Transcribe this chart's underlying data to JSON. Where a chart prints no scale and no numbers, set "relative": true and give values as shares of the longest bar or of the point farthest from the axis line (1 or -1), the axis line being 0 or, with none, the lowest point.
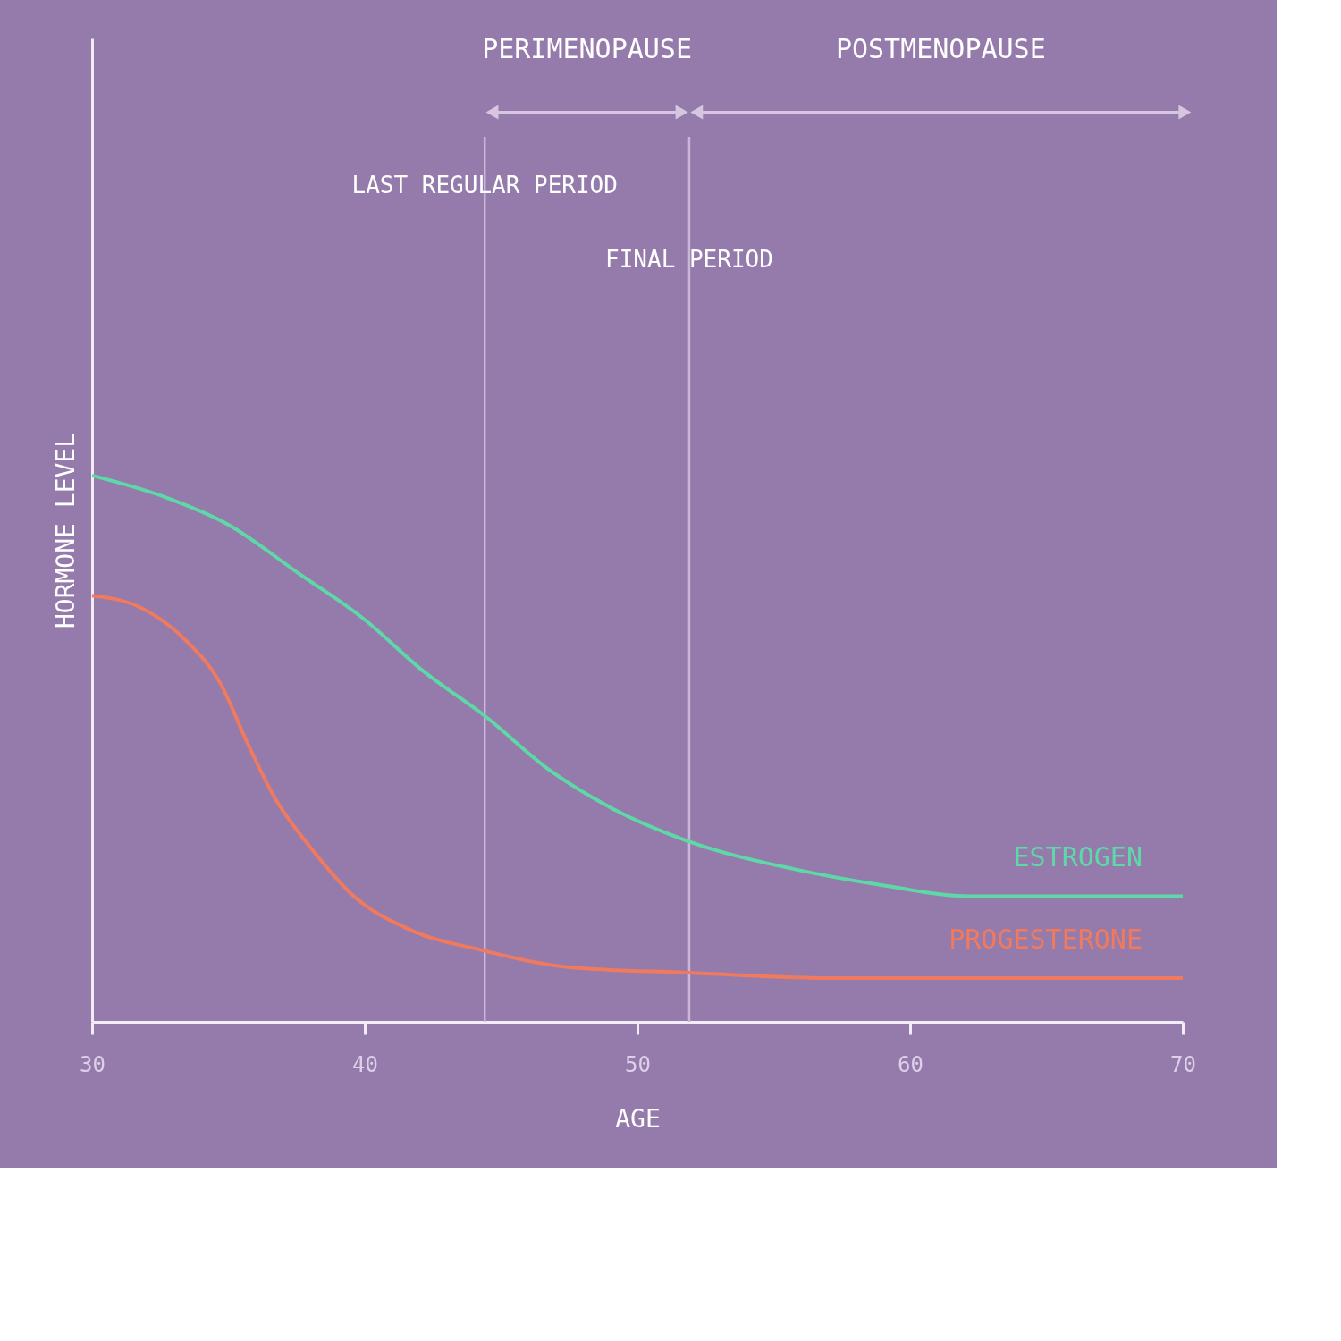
{
  "chart_data": {
    "type": "line",
    "relative": true,
    "xlabel": "AGE",
    "ylabel": "HORMONE LEVEL",
    "xlim": [
      30,
      70
    ],
    "xticks": [
      30,
      40,
      50,
      60,
      70
    ],
    "tick_labels": "x",
    "grid": false,
    "legend": false,
    "marker": "none",
    "line_style": "solid",
    "series": [
      {
        "name": "ESTROGEN",
        "color": "#5fd8a8",
        "x": [
          30,
          32.7,
          35.0,
          37.6,
          39.9,
          42.2,
          44.4,
          46.8,
          49.1,
          51.9,
          55.7,
          59.0,
          62.2,
          65.5,
          70
        ],
        "values": [
          1.0,
          0.96,
          0.91,
          0.82,
          0.74,
          0.64,
          0.56,
          0.46,
          0.39,
          0.33,
          0.28,
          0.25,
          0.23,
          0.23,
          0.23
        ]
      },
      {
        "name": "PROGESTERONE",
        "color": "#f07a5e",
        "x": [
          30,
          31.7,
          33.4,
          34.7,
          35.7,
          36.7,
          38.0,
          39.6,
          41.6,
          44.4,
          47.5,
          51.9,
          57.3,
          70
        ],
        "values": [
          0.78,
          0.76,
          0.7,
          0.62,
          0.51,
          0.41,
          0.32,
          0.23,
          0.17,
          0.13,
          0.1,
          0.09,
          0.08,
          0.08
        ]
      }
    ],
    "ref_lines": [
      {
        "axis": "x",
        "value": 44.4,
        "label": "LAST REGULAR PERIOD",
        "color": "#c9b6d8"
      },
      {
        "axis": "x",
        "value": 51.9,
        "label": "FINAL PERIOD",
        "color": "#c9b6d8"
      }
    ],
    "annotations": [
      "PERIMENOPAUSE",
      "POSTMENOPAUSE"
    ]
  }
}
